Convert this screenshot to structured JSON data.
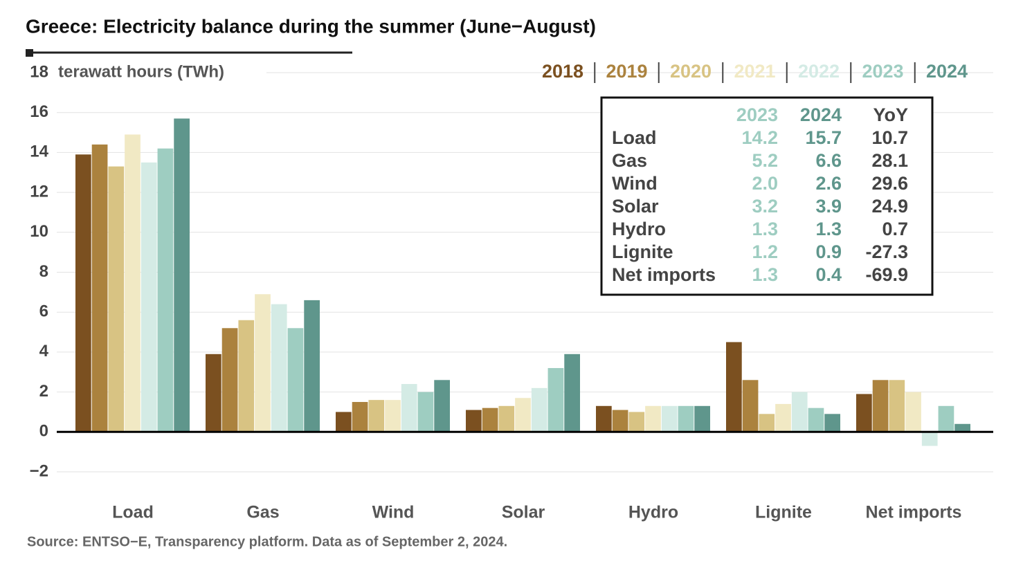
{
  "chart_data": {
    "type": "bar",
    "title": "Greece: Electricity balance during the summer (June−August)",
    "y_label": "terawatt hours (TWh)",
    "source": "Source: ENTSO−E, Transparency platform. Data as of September 2, 2024.",
    "categories": [
      "Load",
      "Gas",
      "Wind",
      "Solar",
      "Hydro",
      "Lignite",
      "Net imports"
    ],
    "series": [
      {
        "name": "2018",
        "color": "#7b5020",
        "values": [
          13.9,
          3.9,
          1.0,
          1.1,
          1.3,
          4.5,
          1.9
        ]
      },
      {
        "name": "2019",
        "color": "#ab823e",
        "values": [
          14.4,
          5.2,
          1.5,
          1.2,
          1.1,
          2.6,
          2.6
        ]
      },
      {
        "name": "2020",
        "color": "#d8c383",
        "values": [
          13.3,
          5.6,
          1.6,
          1.3,
          1.0,
          0.9,
          2.6
        ]
      },
      {
        "name": "2021",
        "color": "#f1e9c4",
        "values": [
          14.9,
          6.9,
          1.6,
          1.7,
          1.3,
          1.4,
          2.0
        ]
      },
      {
        "name": "2022",
        "color": "#d4ebe5",
        "values": [
          13.5,
          6.4,
          2.4,
          2.2,
          1.3,
          2.0,
          -0.7
        ]
      },
      {
        "name": "2023",
        "color": "#9ecdc1",
        "values": [
          14.2,
          5.2,
          2.0,
          3.2,
          1.3,
          1.2,
          1.3
        ]
      },
      {
        "name": "2024",
        "color": "#5f968c",
        "values": [
          15.7,
          6.6,
          2.6,
          3.9,
          1.3,
          0.9,
          0.4
        ]
      }
    ],
    "ylim": [
      -2,
      18
    ],
    "yticks": [
      {
        "value": -2,
        "label": "−2"
      },
      0,
      2,
      4,
      6,
      8,
      10,
      12,
      14,
      16,
      18
    ],
    "grid": true,
    "legend": "top-right",
    "table": {
      "columns": [
        "2023",
        "2024",
        "YoY"
      ],
      "rows": [
        [
          "Load",
          "14.2",
          "15.7",
          "10.7"
        ],
        [
          "Gas",
          "5.2",
          "6.6",
          "28.1"
        ],
        [
          "Wind",
          "2.0",
          "2.6",
          "29.6"
        ],
        [
          "Solar",
          "3.2",
          "3.9",
          "24.9"
        ],
        [
          "Hydro",
          "1.3",
          "1.3",
          "0.7"
        ],
        [
          "Lignite",
          "1.2",
          "0.9",
          "-27.3"
        ],
        [
          "Net imports",
          "1.3",
          "0.4",
          "-69.9"
        ]
      ]
    }
  }
}
